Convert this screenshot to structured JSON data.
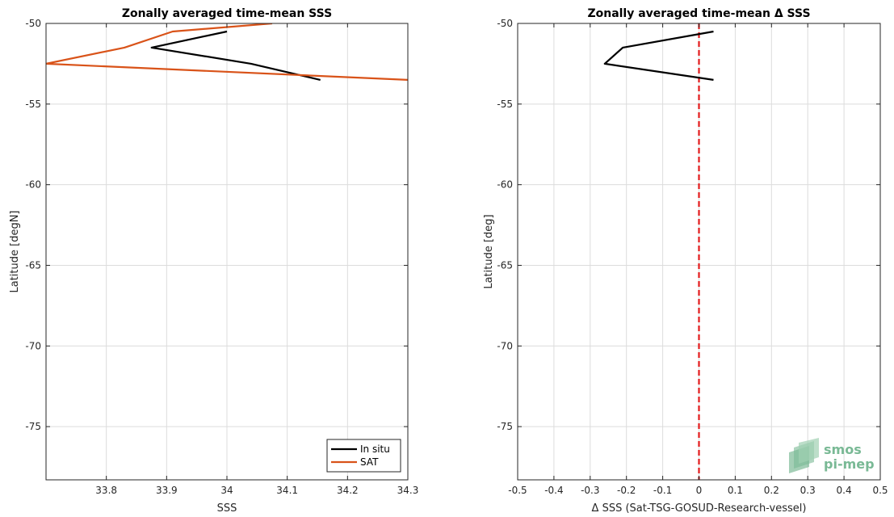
{
  "chart_data": [
    {
      "type": "line",
      "title": "Zonally averaged time-mean SSS",
      "xlabel": "SSS",
      "ylabel": "Latitude [degN]",
      "xlim": [
        33.7,
        34.3
      ],
      "ylim": [
        -78.3,
        -50
      ],
      "xticks": [
        "33.8",
        "33.9",
        "34",
        "34.1",
        "34.2",
        "34.3"
      ],
      "xtick_values": [
        33.8,
        33.9,
        34.0,
        34.1,
        34.2,
        34.3
      ],
      "yticks": [
        "-50",
        "-55",
        "-60",
        "-65",
        "-70",
        "-75"
      ],
      "ytick_values": [
        -50,
        -55,
        -60,
        -65,
        -70,
        -75
      ],
      "grid": true,
      "legend": "bottom-right",
      "series": [
        {
          "name": "In situ",
          "color": "#000000",
          "x": [
            34.0,
            33.875,
            34.04,
            34.155
          ],
          "y": [
            -50.5,
            -51.5,
            -52.5,
            -53.5
          ]
        },
        {
          "name": "SAT",
          "color": "#d95319",
          "x": [
            34.075,
            33.91,
            33.83,
            33.7,
            34.3
          ],
          "y": [
            -50.0,
            -50.5,
            -51.5,
            -52.5,
            -53.5
          ]
        }
      ]
    },
    {
      "type": "line",
      "title": "Zonally averaged time-mean Δ SSS",
      "xlabel": "Δ SSS (Sat-TSG-GOSUD-Research-vessel)",
      "ylabel": "Latitude [deg]",
      "xlim": [
        -0.5,
        0.5
      ],
      "ylim": [
        -78.3,
        -50
      ],
      "xticks": [
        "-0.5",
        "-0.4",
        "-0.3",
        "-0.2",
        "-0.1",
        "0",
        "0.1",
        "0.2",
        "0.3",
        "0.4",
        "0.5"
      ],
      "xtick_values": [
        -0.5,
        -0.4,
        -0.3,
        -0.2,
        -0.1,
        0,
        0.1,
        0.2,
        0.3,
        0.4,
        0.5
      ],
      "yticks": [
        "-50",
        "-55",
        "-60",
        "-65",
        "-70",
        "-75"
      ],
      "ytick_values": [
        -50,
        -55,
        -60,
        -65,
        -70,
        -75
      ],
      "grid": true,
      "reference_line": {
        "x": 0,
        "color": "#e31a1c",
        "style": "dashed"
      },
      "series": [
        {
          "color": "#000000",
          "x": [
            0.04,
            -0.21,
            -0.26,
            0.04
          ],
          "y": [
            -50.5,
            -51.5,
            -52.5,
            -53.5
          ]
        }
      ]
    }
  ],
  "logo": {
    "line1": "smos",
    "line2": "pi-mep",
    "color": "#79b995"
  }
}
